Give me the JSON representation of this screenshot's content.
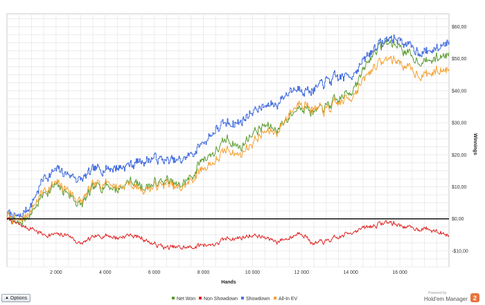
{
  "chart_data": {
    "type": "line",
    "title": "",
    "xlabel": "Hands",
    "ylabel": "Winnings",
    "xlim": [
      0,
      18000
    ],
    "ylim": [
      -15,
      64
    ],
    "x_ticks": [
      2000,
      4000,
      6000,
      8000,
      10000,
      12000,
      14000,
      16000
    ],
    "x_tick_labels": [
      "2 000",
      "4 000",
      "6 000",
      "8 000",
      "10 000",
      "12 000",
      "14 000",
      "16 000"
    ],
    "y_ticks": [
      -10,
      0,
      10,
      20,
      30,
      40,
      50,
      60
    ],
    "y_tick_labels": [
      "-$10,00",
      "$0,00",
      "$10,00",
      "$20,00",
      "$30,00",
      "$40,00",
      "$50,00",
      "$60,00"
    ],
    "grid": true,
    "legend_position": "bottom-center",
    "zero_line": true,
    "x": [
      0,
      500,
      1000,
      1500,
      2000,
      2500,
      3000,
      3500,
      4000,
      4500,
      5000,
      5500,
      6000,
      6500,
      7000,
      7500,
      8000,
      8500,
      9000,
      9500,
      10000,
      10500,
      11000,
      11500,
      12000,
      12500,
      13000,
      13500,
      14000,
      14500,
      15000,
      15500,
      16000,
      16500,
      17000,
      17500,
      18000
    ],
    "series": [
      {
        "name": "Net Won",
        "color": "#5a9a2e",
        "values": [
          1,
          -2,
          2,
          8,
          10,
          8,
          4,
          9,
          11,
          9,
          12,
          10,
          11,
          12,
          10,
          13,
          19,
          21,
          25,
          22,
          27,
          29,
          28,
          32,
          36,
          33,
          35,
          37,
          40,
          46,
          53,
          55,
          54,
          50,
          49,
          50,
          52
        ]
      },
      {
        "name": "Non Showdown",
        "color": "#e02020",
        "values": [
          0,
          -2,
          -3,
          -5,
          -5,
          -5,
          -8,
          -6,
          -5,
          -6,
          -5,
          -6,
          -8,
          -9,
          -9,
          -9,
          -8,
          -8,
          -6,
          -6,
          -5,
          -6,
          -7,
          -6,
          -4,
          -8,
          -7,
          -6,
          -4,
          -3,
          -2,
          -1,
          -2,
          -3,
          -3,
          -4,
          -5
        ]
      },
      {
        "name": "Showdown",
        "color": "#4a72e0",
        "values": [
          2,
          0,
          5,
          13,
          15,
          14,
          12,
          15,
          16,
          16,
          17,
          18,
          19,
          18,
          18,
          20,
          24,
          28,
          30,
          30,
          34,
          35,
          36,
          40,
          41,
          40,
          43,
          44,
          45,
          49,
          54,
          56,
          56,
          53,
          52,
          53,
          56
        ]
      },
      {
        "name": "All-In EV",
        "color": "#f5a030",
        "values": [
          1,
          -1,
          3,
          9,
          11,
          9,
          5,
          10,
          12,
          10,
          11,
          9,
          10,
          11,
          9,
          12,
          16,
          18,
          22,
          20,
          24,
          27,
          27,
          33,
          37,
          34,
          34,
          36,
          38,
          43,
          48,
          50,
          49,
          46,
          45,
          46,
          47
        ]
      }
    ]
  },
  "ui": {
    "options_label": "Options",
    "brand_small": "Powered by",
    "brand_name": "Hold'em Manager",
    "brand_logo": "2"
  }
}
